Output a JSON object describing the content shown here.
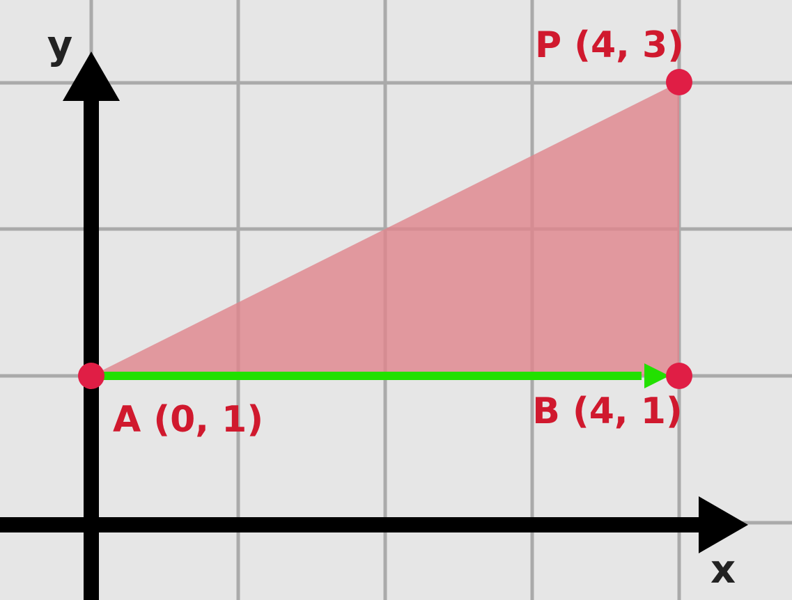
{
  "colors": {
    "background": "#e6e6e6",
    "grid": "#aaaaaa",
    "axis": "#000000",
    "triangle_fill": "#e0858c",
    "point": "#e01e45",
    "label": "#d0192e",
    "vector": "#22e000"
  },
  "axes": {
    "x_label": "x",
    "y_label": "y"
  },
  "points": [
    {
      "id": "A",
      "label": "A (0, 1)",
      "x": 0,
      "y": 1
    },
    {
      "id": "B",
      "label": "B (4, 1)",
      "x": 4,
      "y": 1
    },
    {
      "id": "P",
      "label": "P (4, 3)",
      "x": 4,
      "y": 3
    }
  ],
  "triangle": [
    "A",
    "P",
    "B"
  ],
  "vector": {
    "from": "A",
    "to": "B"
  }
}
